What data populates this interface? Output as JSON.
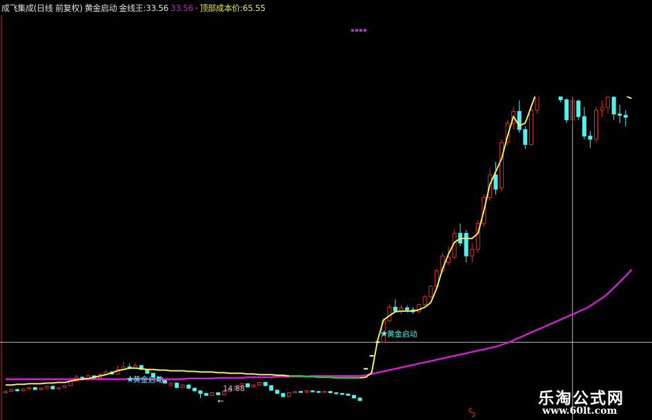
{
  "header": {
    "title": "成飞集成(日线 前复权)",
    "indicator": "黄金启动",
    "gold_line_label": "金线王:",
    "gold_line_value": "33.56",
    "magenta_value": "33.56",
    "sep": "·",
    "top_cost_label": "顶部成本价:",
    "top_cost_value": "65.55"
  },
  "watermark": {
    "name": "乐淘公式网",
    "url": "www.60lt.com"
  },
  "colors": {
    "background": "#000000",
    "up_candle": "#e0302a",
    "down_candle": "#54f0f0",
    "gold_line": "#f4f060",
    "gold_line_alt": "#30c030",
    "cost_line": "#d020d0",
    "crosshair": "#c0c0c0",
    "label": "#54f0f0",
    "header_title": "#e0e0e0",
    "header_magenta": "#b030c0",
    "header_yellow": "#e8e860"
  },
  "chart_data": {
    "type": "candlestick",
    "ylim": [
      13,
      60
    ],
    "grid": false,
    "candles_ohlc": [
      [
        14.4,
        14.8,
        14.3,
        14.6
      ],
      [
        14.6,
        15.0,
        14.5,
        14.9
      ],
      [
        14.9,
        15.0,
        14.6,
        14.7
      ],
      [
        14.7,
        15.1,
        14.6,
        15.0
      ],
      [
        15.0,
        15.3,
        14.9,
        15.2
      ],
      [
        15.2,
        15.3,
        14.8,
        14.9
      ],
      [
        14.9,
        15.2,
        14.8,
        15.1
      ],
      [
        15.1,
        15.5,
        15.0,
        15.4
      ],
      [
        15.4,
        15.5,
        14.9,
        15.0
      ],
      [
        15.0,
        15.3,
        14.9,
        15.2
      ],
      [
        15.2,
        15.6,
        15.1,
        15.5
      ],
      [
        15.5,
        16.4,
        15.4,
        16.2
      ],
      [
        16.2,
        17.2,
        16.1,
        16.8
      ],
      [
        16.8,
        16.9,
        16.3,
        16.4
      ],
      [
        16.4,
        17.3,
        16.3,
        17.0
      ],
      [
        17.0,
        17.1,
        16.6,
        16.7
      ],
      [
        16.7,
        17.5,
        16.6,
        17.2
      ],
      [
        17.2,
        17.9,
        17.1,
        17.6
      ],
      [
        17.6,
        17.8,
        17.2,
        17.3
      ],
      [
        17.3,
        18.6,
        17.2,
        18.0
      ],
      [
        18.0,
        19.2,
        17.9,
        18.4
      ],
      [
        18.4,
        18.9,
        18.0,
        18.2
      ],
      [
        18.2,
        19.0,
        18.1,
        18.6
      ],
      [
        18.6,
        18.7,
        17.9,
        18.0
      ],
      [
        18.0,
        18.1,
        17.3,
        17.4
      ],
      [
        17.4,
        17.5,
        16.7,
        16.8
      ],
      [
        16.8,
        16.9,
        16.2,
        16.3
      ],
      [
        16.3,
        16.4,
        15.8,
        15.9
      ],
      [
        15.6,
        16.0,
        15.4,
        15.9
      ],
      [
        15.9,
        16.0,
        15.1,
        15.2
      ],
      [
        15.2,
        15.7,
        15.1,
        15.6
      ],
      [
        15.6,
        15.7,
        15.0,
        15.1
      ],
      [
        15.1,
        15.2,
        14.6,
        14.7
      ],
      [
        14.7,
        14.8,
        13.6,
        14.3
      ],
      [
        14.3,
        14.4,
        13.9,
        14.0
      ],
      [
        14.0,
        14.5,
        13.9,
        14.4
      ],
      [
        14.4,
        14.5,
        14.0,
        14.1
      ],
      [
        14.1,
        14.7,
        14.0,
        14.6
      ],
      [
        14.6,
        15.1,
        14.5,
        15.0
      ],
      [
        15.0,
        15.5,
        14.9,
        15.4
      ],
      [
        15.4,
        15.9,
        15.3,
        15.8
      ],
      [
        15.8,
        15.9,
        15.2,
        15.3
      ],
      [
        15.3,
        15.7,
        15.2,
        15.6
      ],
      [
        15.6,
        16.1,
        15.5,
        16.0
      ],
      [
        16.0,
        16.1,
        15.4,
        15.5
      ],
      [
        15.5,
        15.6,
        14.7,
        14.8
      ],
      [
        14.8,
        14.9,
        14.2,
        14.3
      ],
      [
        14.3,
        14.4,
        13.7,
        13.8
      ],
      [
        13.8,
        14.5,
        13.7,
        14.4
      ],
      [
        14.4,
        14.7,
        14.3,
        14.6
      ],
      [
        14.6,
        14.7,
        14.4,
        14.5
      ],
      [
        14.5,
        14.8,
        14.4,
        14.7
      ],
      [
        14.7,
        14.8,
        14.5,
        14.6
      ],
      [
        14.6,
        14.7,
        14.4,
        14.5
      ],
      [
        14.5,
        14.7,
        14.4,
        14.6
      ],
      [
        14.6,
        14.7,
        14.3,
        14.4
      ],
      [
        14.4,
        14.5,
        14.2,
        14.3
      ],
      [
        14.3,
        14.4,
        14.1,
        14.2
      ],
      [
        14.2,
        14.3,
        13.9,
        14.0
      ],
      [
        14.0,
        14.1,
        13.5,
        13.6
      ],
      [
        13.6,
        13.7,
        13.1,
        13.2
      ],
      [
        18.1,
        18.1,
        18.1,
        18.1
      ],
      [
        20.1,
        20.1,
        20.1,
        20.1
      ],
      [
        22.2,
        22.2,
        22.2,
        22.2
      ],
      [
        22.2,
        26.0,
        22.2,
        25.5
      ],
      [
        25.5,
        28.0,
        25.3,
        27.6
      ],
      [
        27.6,
        28.8,
        26.8,
        27.0
      ],
      [
        27.0,
        28.0,
        26.5,
        27.5
      ],
      [
        27.5,
        27.9,
        26.8,
        27.2
      ],
      [
        27.2,
        27.6,
        26.6,
        26.9
      ],
      [
        26.9,
        28.2,
        26.8,
        28.0
      ],
      [
        28.0,
        29.5,
        27.8,
        29.2
      ],
      [
        29.2,
        31.0,
        29.0,
        30.8
      ],
      [
        30.8,
        33.5,
        30.5,
        33.2
      ],
      [
        33.2,
        36.0,
        33.0,
        35.5
      ],
      [
        34.5,
        37.0,
        34.0,
        35.3
      ],
      [
        35.3,
        39.5,
        35.0,
        39.0
      ],
      [
        39.0,
        40.5,
        37.0,
        37.5
      ],
      [
        39.0,
        39.5,
        34.5,
        35.5
      ],
      [
        35.5,
        37.5,
        34.5,
        36.5
      ],
      [
        36.5,
        41.0,
        36.0,
        40.5
      ],
      [
        40.5,
        45.0,
        40.0,
        44.5
      ],
      [
        44.5,
        49.0,
        44.0,
        48.0
      ],
      [
        48.0,
        50.0,
        45.0,
        45.8
      ],
      [
        46.0,
        53.5,
        45.5,
        53.0
      ],
      [
        53.0,
        56.5,
        52.5,
        56.0
      ],
      [
        56.0,
        58.5,
        55.0,
        57.8
      ],
      [
        57.8,
        59.5,
        54.5,
        55.0
      ],
      [
        55.0,
        55.5,
        52.0,
        52.7
      ],
      [
        52.7,
        58.5,
        52.5,
        58.0
      ],
      [
        58.0,
        63.0,
        57.5,
        62.5
      ],
      [
        62.5,
        66.0,
        62.0,
        65.5
      ],
      [
        65.5,
        67.0,
        63.0,
        64.0
      ],
      [
        64.0,
        66.0,
        62.0,
        63.0
      ],
      [
        62.0,
        62.5,
        59.2,
        59.6
      ],
      [
        59.6,
        59.8,
        56.0,
        56.5
      ],
      [
        56.5,
        60.2,
        55.8,
        59.4
      ],
      [
        59.4,
        59.6,
        56.5,
        57.0
      ],
      [
        57.0,
        58.5,
        53.5,
        54.0
      ],
      [
        54.0,
        54.8,
        52.2,
        53.5
      ],
      [
        53.5,
        58.5,
        53.0,
        58.0
      ],
      [
        58.0,
        59.5,
        57.0,
        58.4
      ],
      [
        58.4,
        60.5,
        57.5,
        60.0
      ],
      [
        60.0,
        60.3,
        56.5,
        57.4
      ],
      [
        57.4,
        58.8,
        56.0,
        57.2
      ],
      [
        57.2,
        58.0,
        55.5,
        56.9
      ]
    ],
    "gold_line": [
      15.6,
      15.6,
      15.7,
      15.7,
      15.8,
      15.8,
      15.8,
      15.9,
      15.9,
      16.0,
      16.0,
      16.2,
      16.4,
      16.5,
      16.6,
      16.8,
      17.0,
      17.2,
      17.5,
      17.8,
      18.0,
      18.2,
      18.2,
      18.1,
      18.0,
      18.0,
      17.9,
      17.9,
      17.8,
      17.8,
      17.8,
      17.7,
      17.7,
      17.6,
      17.6,
      17.6,
      17.5,
      17.5,
      17.4,
      17.4,
      17.4,
      17.3,
      17.3,
      17.2,
      17.2,
      17.2,
      17.1,
      17.1,
      17.0,
      17.0,
      17.0,
      16.9,
      16.9,
      16.8,
      16.8,
      16.8,
      16.7,
      16.7,
      16.7,
      16.7,
      16.7,
      16.8,
      17.5,
      22.5,
      25.6,
      26.3,
      26.9,
      27.0,
      27.0,
      27.0,
      27.2,
      27.6,
      28.3,
      30.5,
      33.5,
      35.8,
      37.6,
      38.2,
      38.2,
      38.2,
      39.0,
      42.5,
      46.5,
      48.5,
      50.5,
      54.0,
      57.0,
      55.6,
      56.0,
      58.5,
      61,
      63,
      64,
      65,
      65,
      65,
      64,
      64,
      64,
      63,
      63,
      63,
      62,
      62,
      61,
      60.2,
      59.8
    ],
    "gold_line_alt_range": [
      48,
      60
    ],
    "cost_line": [
      16.5,
      16.5,
      16.5,
      16.5,
      16.5,
      16.5,
      16.5,
      16.5,
      16.5,
      16.5,
      16.5,
      16.5,
      16.5,
      16.5,
      16.5,
      16.5,
      16.5,
      16.5,
      16.5,
      16.5,
      16.5,
      16.5,
      16.5,
      16.5,
      16.5,
      16.5,
      16.5,
      16.5,
      16.5,
      16.5,
      16.5,
      16.6,
      16.6,
      16.6,
      16.6,
      16.6,
      16.7,
      16.7,
      16.7,
      16.7,
      16.7,
      16.8,
      16.8,
      16.8,
      16.8,
      16.8,
      16.9,
      16.9,
      16.9,
      16.9,
      16.9,
      16.9,
      17.0,
      17.0,
      17.0,
      17.0,
      17.0,
      17.0,
      17.0,
      17.0,
      17.0,
      17.1,
      17.3,
      17.5,
      17.7,
      17.9,
      18.1,
      18.3,
      18.5,
      18.7,
      18.9,
      19.1,
      19.3,
      19.5,
      19.7,
      19.9,
      20.1,
      20.3,
      20.5,
      20.7,
      20.9,
      21.1,
      21.3,
      21.5,
      21.8,
      22.1,
      22.5,
      22.9,
      23.3,
      23.7,
      24.1,
      24.5,
      24.9,
      25.3,
      25.7,
      26.1,
      26.5,
      26.9,
      27.3,
      27.8,
      28.4,
      29.0,
      29.7,
      30.6,
      31.5,
      32.4,
      33.4
    ],
    "crosshair": {
      "index": 96,
      "price": 22.2
    },
    "signals": [
      {
        "index": 21,
        "price": 16.6,
        "label": "黄金启动"
      },
      {
        "index": 64,
        "price": 23.6,
        "label": "黄金启动"
      }
    ],
    "low_annotation": {
      "index": 38,
      "price": 14.88,
      "label": "14.88",
      "arrow": "←"
    }
  }
}
